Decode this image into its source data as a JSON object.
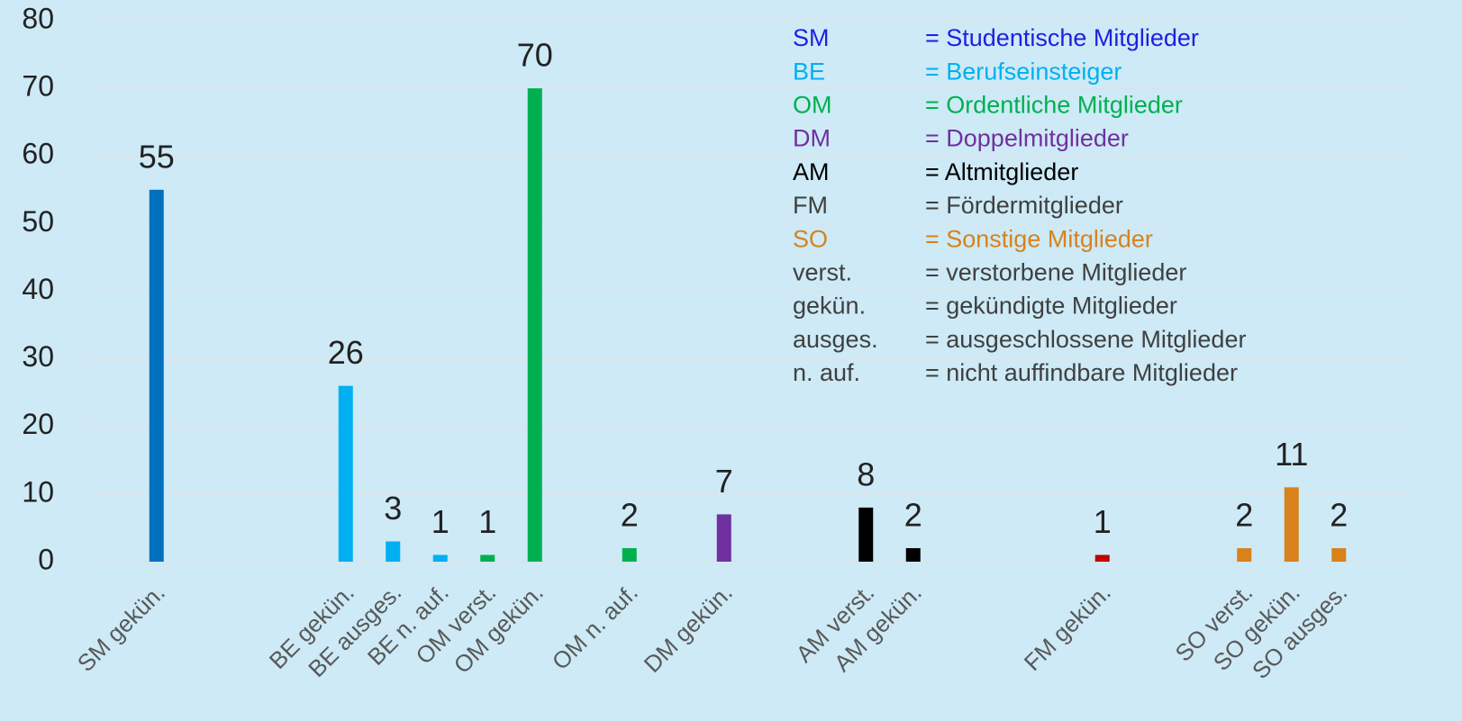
{
  "chart_data": {
    "type": "bar",
    "categories": [
      null,
      "SM gekün.",
      null,
      null,
      null,
      "BE gekün.",
      "BE ausges.",
      "BE n. auf.",
      "OM verst.",
      "OM gekün.",
      null,
      "OM n. auf.",
      null,
      "DM gekün.",
      null,
      null,
      "AM verst.",
      "AM gekün.",
      null,
      null,
      null,
      "FM gekün.",
      null,
      null,
      "SO verst.",
      "SO gekün.",
      "SO ausges.",
      null
    ],
    "values": [
      null,
      55,
      null,
      null,
      null,
      26,
      3,
      1,
      1,
      70,
      null,
      2,
      null,
      7,
      null,
      null,
      8,
      2,
      null,
      null,
      null,
      1,
      null,
      null,
      2,
      11,
      2,
      null
    ],
    "colors": [
      null,
      "#0070c0",
      null,
      null,
      null,
      "#00b0f0",
      "#00b0f0",
      "#00b0f0",
      "#00b050",
      "#00b050",
      null,
      "#00b050",
      null,
      "#7030a0",
      null,
      null,
      "#000000",
      "#000000",
      null,
      null,
      null,
      "#c00000",
      null,
      null,
      "#d8821c",
      "#d8821c",
      "#d8821c",
      null
    ],
    "ylim": [
      0,
      80
    ],
    "yticks": [
      0,
      10,
      20,
      30,
      40,
      50,
      60,
      70,
      80
    ],
    "grid": true,
    "legend": [
      {
        "abbr": "SM",
        "text": "= Studentische Mitglieder",
        "color": "#1f1fe0"
      },
      {
        "abbr": "BE",
        "text": "= Berufseinsteiger",
        "color": "#00b0f0"
      },
      {
        "abbr": "OM",
        "text": "= Ordentliche Mitglieder",
        "color": "#00b050"
      },
      {
        "abbr": "DM",
        "text": "= Doppelmitglieder",
        "color": "#7030a0"
      },
      {
        "abbr": "AM",
        "text": "= Altmitglieder",
        "color": "#000000"
      },
      {
        "abbr": "FM",
        "text": "= Fördermitglieder",
        "color": "#404040"
      },
      {
        "abbr": "SO",
        "text": "= Sonstige Mitglieder",
        "color": "#d8821c"
      },
      {
        "abbr": "verst.",
        "text": "= verstorbene Mitglieder",
        "color": "#404040"
      },
      {
        "abbr": "gekün.",
        "text": "= gekündigte Mitglieder",
        "color": "#404040"
      },
      {
        "abbr": "ausges.",
        "text": "= ausgeschlossene Mitglieder",
        "color": "#404040"
      },
      {
        "abbr": "n. auf.",
        "text": "= nicht auffindbare Mitglieder",
        "color": "#404040"
      }
    ]
  }
}
